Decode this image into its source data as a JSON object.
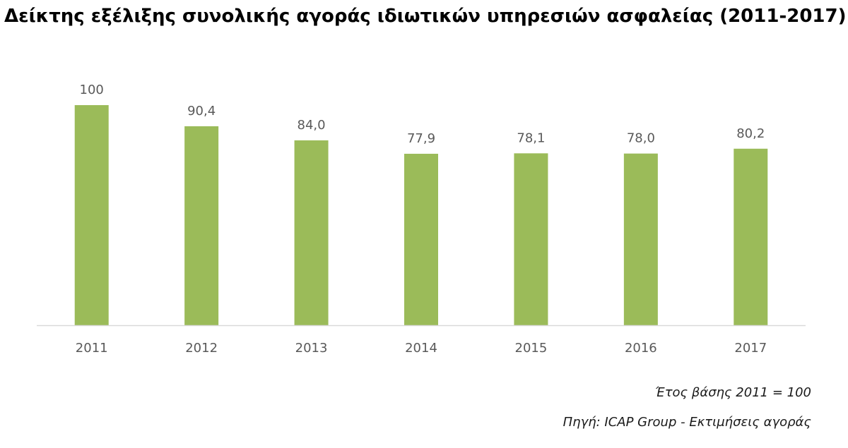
{
  "chart_data": {
    "type": "bar",
    "title": "Δείκτης εξέλιξης συνολικής αγοράς ιδιωτικών υπηρεσιών ασφαλείας (2011-2017)",
    "categories": [
      "2011",
      "2012",
      "2013",
      "2014",
      "2015",
      "2016",
      "2017"
    ],
    "values": [
      100,
      90.4,
      84.0,
      77.9,
      78.1,
      78.0,
      80.2
    ],
    "value_labels": [
      "100",
      "90,4",
      "84,0",
      "77,9",
      "78,1",
      "78,0",
      "80,2"
    ],
    "xlabel": "",
    "ylabel": "",
    "ylim": [
      0,
      100
    ],
    "grid": false,
    "legend": "none",
    "bar_color": "#9bbb59",
    "axis_color": "#d9d9d9"
  },
  "notes": {
    "base_year": "Έτος βάσης 2011 = 100",
    "source": "Πηγή: ICAP Group - Εκτιμήσεις αγοράς"
  }
}
